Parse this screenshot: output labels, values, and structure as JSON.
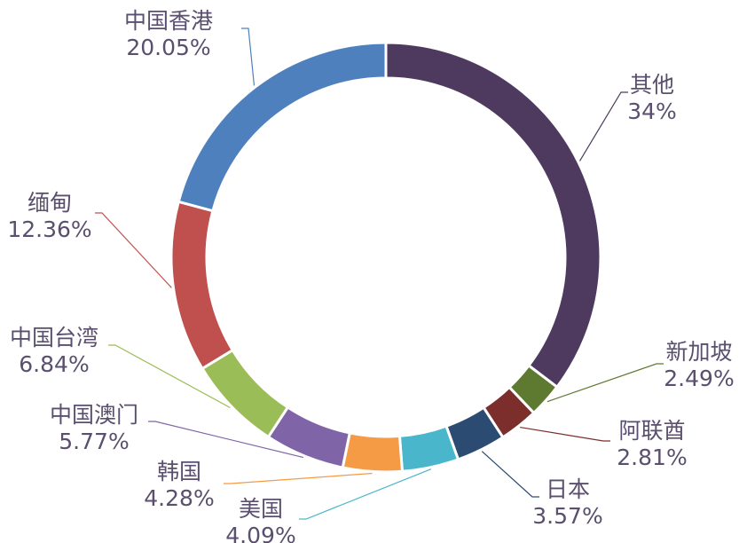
{
  "chart_data": {
    "type": "pie",
    "donut": true,
    "legend": "none",
    "categories": [
      "其他",
      "新加坡",
      "阿联酋",
      "日本",
      "美国",
      "韩国",
      "中国澳门",
      "中国台湾",
      "缅甸",
      "中国香港"
    ],
    "values": [
      34,
      2.49,
      2.81,
      3.57,
      4.09,
      4.28,
      5.77,
      6.84,
      12.36,
      20.05
    ],
    "value_labels": [
      "34%",
      "2.49%",
      "2.81%",
      "3.57%",
      "4.09%",
      "4.28%",
      "5.77%",
      "6.84%",
      "12.36%",
      "20.05%"
    ],
    "colors": [
      "#4e3a5f",
      "#5e7a30",
      "#7b2e2c",
      "#2b4b73",
      "#f59a45",
      "#49b6cc",
      "#8064a8",
      "#9bbd58",
      "#c0504e",
      "#4e80bd",
      "#236a78"
    ],
    "slice_colors": [
      "#4e3a5f",
      "#5e7a30",
      "#7b2e2c",
      "#2b4b73",
      "#49b6cc",
      "#f59a45",
      "#8064a8",
      "#9bbd58",
      "#c0504e",
      "#4e80bd",
      "#236a78"
    ]
  }
}
